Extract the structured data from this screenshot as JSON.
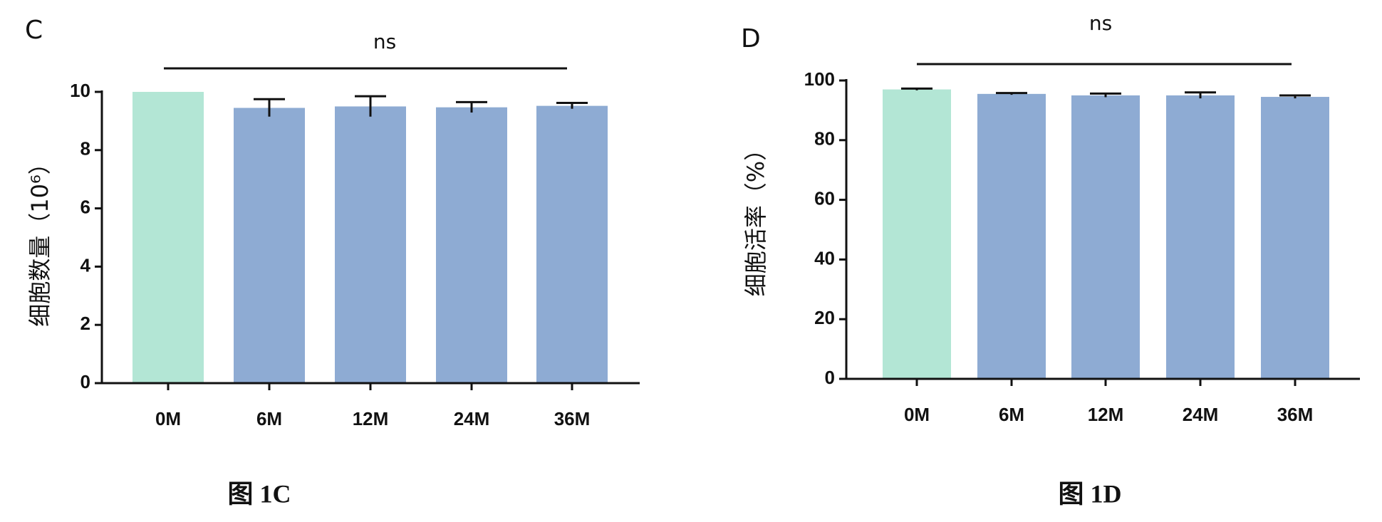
{
  "chart_data": [
    {
      "type": "bar",
      "panel_label": "C",
      "annotation": "ns",
      "y_label": "细胞数量（10⁶）",
      "caption": "图 1C",
      "categories": [
        "0M",
        "6M",
        "12M",
        "24M",
        "36M"
      ],
      "values": [
        10.0,
        9.45,
        9.5,
        9.47,
        9.52
      ],
      "errors": [
        0,
        0.3,
        0.35,
        0.18,
        0.1
      ],
      "colors": [
        "#b3e6d5",
        "#8eabd3",
        "#8eabd3",
        "#8eabd3",
        "#8eabd3"
      ],
      "ylim": [
        0,
        10
      ],
      "yticks": [
        0,
        2,
        4,
        6,
        8,
        10
      ]
    },
    {
      "type": "bar",
      "panel_label": "D",
      "annotation": "ns",
      "y_label": "细胞活率（%）",
      "caption": "图 1D",
      "categories": [
        "0M",
        "6M",
        "12M",
        "24M",
        "36M"
      ],
      "values": [
        97,
        95.5,
        95,
        95,
        94.5
      ],
      "errors": [
        0.3,
        0.3,
        0.6,
        1.0,
        0.5
      ],
      "colors": [
        "#b3e6d5",
        "#8eabd3",
        "#8eabd3",
        "#8eabd3",
        "#8eabd3"
      ],
      "ylim": [
        0,
        100
      ],
      "yticks": [
        0,
        20,
        40,
        60,
        80,
        100
      ]
    }
  ]
}
